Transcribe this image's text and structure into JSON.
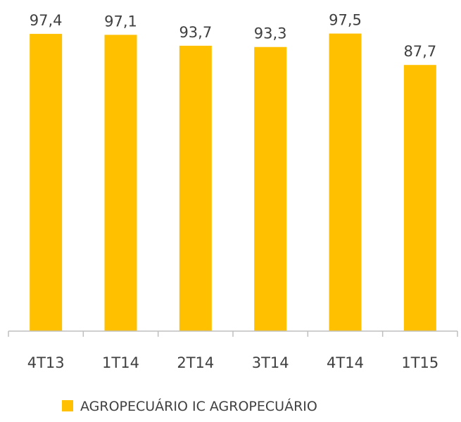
{
  "chart_data": {
    "type": "bar",
    "categories": [
      "4T13",
      "1T14",
      "2T14",
      "3T14",
      "4T14",
      "1T15"
    ],
    "series": [
      {
        "name": "AGROPECUÁRIO IC AGROPECUÁRIO",
        "values": [
          97.4,
          97.1,
          93.7,
          93.3,
          97.5,
          87.7
        ],
        "labels": [
          "97,4",
          "97,1",
          "93,7",
          "93,3",
          "97,5",
          "87,7"
        ],
        "color": "#FFC000"
      }
    ],
    "title": "",
    "xlabel": "",
    "ylabel": "",
    "ylim": [
      0,
      100
    ],
    "grid": false,
    "legend_position": "bottom",
    "axis_color": "#BFBFBF",
    "text_color": "#404040"
  }
}
